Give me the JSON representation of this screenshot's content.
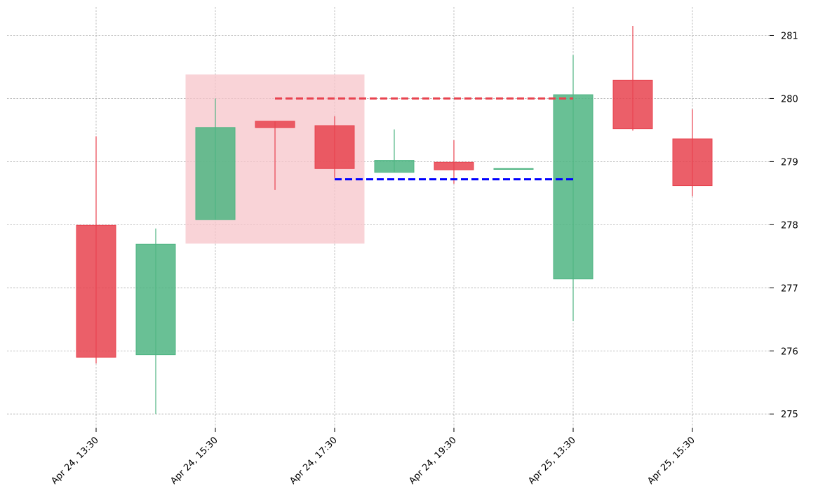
{
  "chart_data": {
    "type": "candlestick",
    "title": "",
    "xlabel": "",
    "ylabel": "",
    "ylim": [
      274.78,
      281.45
    ],
    "yticks": [
      275,
      276,
      277,
      278,
      279,
      280,
      281
    ],
    "xticks": [
      {
        "index": 0,
        "label": "Apr 24, 13:30"
      },
      {
        "index": 2,
        "label": "Apr 24, 15:30"
      },
      {
        "index": 4,
        "label": "Apr 24, 17:30"
      },
      {
        "index": 6,
        "label": "Apr 24, 19:30"
      },
      {
        "index": 8,
        "label": "Apr 25, 13:30"
      },
      {
        "index": 10,
        "label": "Apr 25, 15:30"
      }
    ],
    "candles": [
      {
        "open": 277.99,
        "high": 279.4,
        "low": 275.8,
        "close": 275.9
      },
      {
        "open": 275.94,
        "high": 277.94,
        "low": 275.0,
        "close": 277.69
      },
      {
        "open": 278.08,
        "high": 280.0,
        "low": 278.08,
        "close": 279.54
      },
      {
        "open": 279.64,
        "high": 279.64,
        "low": 278.55,
        "close": 279.54
      },
      {
        "open": 279.57,
        "high": 279.72,
        "low": 278.74,
        "close": 278.89
      },
      {
        "open": 278.83,
        "high": 279.51,
        "low": 278.83,
        "close": 279.02
      },
      {
        "open": 278.99,
        "high": 279.34,
        "low": 278.65,
        "close": 278.87
      },
      {
        "open": 278.89,
        "high": 278.89,
        "low": 278.89,
        "close": 278.89
      },
      {
        "open": 277.14,
        "high": 280.69,
        "low": 276.47,
        "close": 280.06
      },
      {
        "open": 280.29,
        "high": 281.15,
        "low": 279.49,
        "close": 279.52
      },
      {
        "open": 279.36,
        "high": 279.83,
        "low": 278.45,
        "close": 278.62
      }
    ],
    "highlight_region": {
      "x_start": 1.5,
      "x_end": 4.5,
      "y_low": 277.7,
      "y_high": 280.38
    },
    "reference_lines": [
      {
        "y": 280.0,
        "x_start": 3,
        "x_end": 8,
        "color": "#e8434f",
        "style": "dashed"
      },
      {
        "y": 278.72,
        "x_start": 4,
        "x_end": 8,
        "color": "#0000ff",
        "style": "dashed"
      }
    ],
    "colors": {
      "up": "#4fb583",
      "down": "#e8434f",
      "highlight": "#f7c4ca"
    },
    "grid": true
  }
}
